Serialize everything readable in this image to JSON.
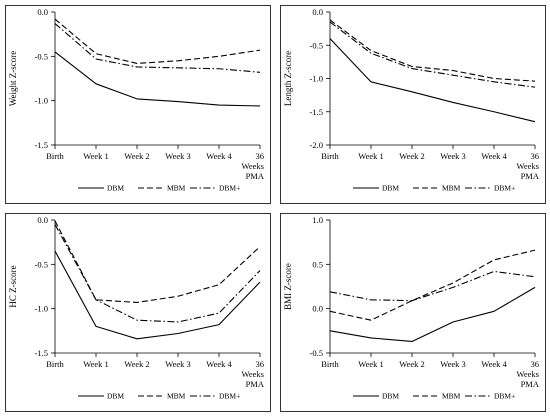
{
  "chart_data": [
    {
      "type": "line",
      "categories": [
        "Birth",
        "Week 1",
        "Week 2",
        "Week 3",
        "Week 4",
        "36 Weeks PMA"
      ],
      "ylabel": "Weight Z-score",
      "ylim": [
        -1.5,
        0.0
      ],
      "yticks": [
        "0.0",
        "-0.5",
        "-1.0",
        "-1.5"
      ],
      "grid": false,
      "legend_position": "bottom",
      "series": [
        {
          "name": "DBM",
          "dash": "solid",
          "values": [
            -0.45,
            -0.81,
            -0.98,
            -1.01,
            -1.05,
            -1.06
          ]
        },
        {
          "name": "MBM",
          "dash": "dashed",
          "values": [
            -0.08,
            -0.47,
            -0.58,
            -0.55,
            -0.5,
            -0.43
          ]
        },
        {
          "name": "DBM+",
          "dash": "dash-dot",
          "values": [
            -0.13,
            -0.53,
            -0.62,
            -0.63,
            -0.64,
            -0.68
          ]
        }
      ]
    },
    {
      "type": "line",
      "categories": [
        "Birth",
        "Week 1",
        "Week 2",
        "Week 3",
        "Week 4",
        "36 Weeks PMA"
      ],
      "ylabel": "Length Z-score",
      "ylim": [
        -2.0,
        0.0
      ],
      "yticks": [
        "0.0",
        "-0.5",
        "-1.0",
        "-1.5",
        "-2.0"
      ],
      "grid": false,
      "legend_position": "bottom",
      "series": [
        {
          "name": "DBM",
          "dash": "solid",
          "values": [
            -0.4,
            -1.05,
            -1.2,
            -1.36,
            -1.5,
            -1.65
          ]
        },
        {
          "name": "MBM",
          "dash": "dashed",
          "values": [
            -0.12,
            -0.58,
            -0.82,
            -0.88,
            -1.0,
            -1.04
          ]
        },
        {
          "name": "DBM+",
          "dash": "dash-dot",
          "values": [
            -0.15,
            -0.62,
            -0.85,
            -0.95,
            -1.05,
            -1.13
          ]
        }
      ]
    },
    {
      "type": "line",
      "categories": [
        "Birth",
        "Week 1",
        "Week 2",
        "Week 3",
        "Week 4",
        "36 Weeks PMA"
      ],
      "ylabel": "HC Z-score",
      "ylim": [
        -1.5,
        0.0
      ],
      "yticks": [
        "0.0",
        "-0.5",
        "-1.0",
        "-1.5"
      ],
      "grid": false,
      "legend_position": "bottom",
      "series": [
        {
          "name": "DBM",
          "dash": "solid",
          "values": [
            -0.35,
            -1.2,
            -1.34,
            -1.28,
            -1.18,
            -0.7
          ]
        },
        {
          "name": "MBM",
          "dash": "dashed",
          "values": [
            -0.01,
            -0.9,
            -0.93,
            -0.86,
            -0.73,
            -0.3
          ]
        },
        {
          "name": "DBM+",
          "dash": "dash-dot",
          "values": [
            -0.05,
            -0.9,
            -1.13,
            -1.15,
            -1.05,
            -0.57
          ]
        }
      ]
    },
    {
      "type": "line",
      "categories": [
        "Birth",
        "Week 1",
        "Week 2",
        "Week 3",
        "Week 4",
        "36 Weeks PMA"
      ],
      "ylabel": "BMI Z-score",
      "ylim": [
        -0.5,
        1.0
      ],
      "yticks": [
        "1.0",
        "0.5",
        "0.0",
        "-0.5"
      ],
      "grid": false,
      "legend_position": "bottom",
      "series": [
        {
          "name": "DBM",
          "dash": "solid",
          "values": [
            -0.25,
            -0.33,
            -0.37,
            -0.15,
            -0.03,
            0.24
          ]
        },
        {
          "name": "MBM",
          "dash": "dashed",
          "values": [
            -0.03,
            -0.13,
            0.09,
            0.29,
            0.55,
            0.66
          ]
        },
        {
          "name": "DBM+",
          "dash": "dash-dot",
          "values": [
            0.19,
            0.1,
            0.09,
            0.24,
            0.42,
            0.36
          ]
        }
      ]
    }
  ]
}
